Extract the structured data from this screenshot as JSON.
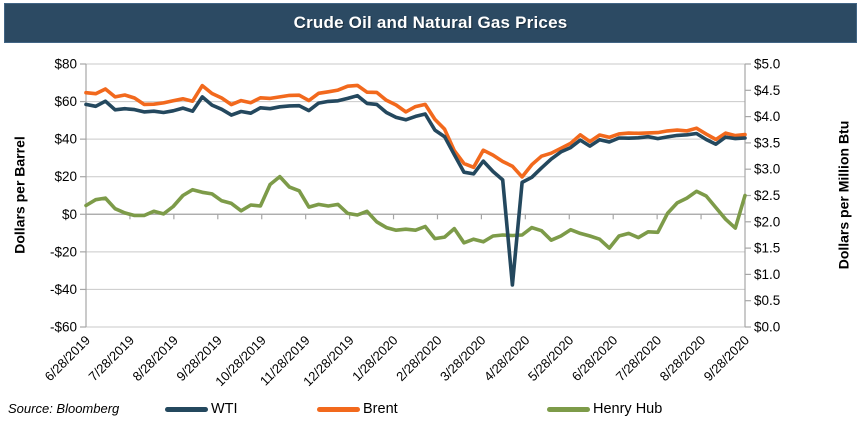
{
  "title": "Crude Oil and Natural Gas Prices",
  "source_note": "Source: Bloomberg",
  "colors": {
    "title_bar": "#2c4a63",
    "wti": "#24485e",
    "brent": "#f2691d",
    "henry_hub": "#7d9b49",
    "gridline": "#c9c9c9",
    "axis_line": "#a6a6a6"
  },
  "axes": {
    "left": {
      "title": "Dollars per Barrel",
      "ticks": [
        "$80",
        "$60",
        "$40",
        "$20",
        "$0",
        "-$20",
        "-$40",
        "-$60"
      ],
      "tick_values": [
        80,
        60,
        40,
        20,
        0,
        -20,
        -40,
        -60
      ]
    },
    "right": {
      "title": "Dollars per Million Btu",
      "ticks": [
        "$5.0",
        "$4.5",
        "$4.0",
        "$3.5",
        "$3.0",
        "$2.5",
        "$2.0",
        "$1.5",
        "$1.0",
        "$0.5",
        "$0.0"
      ],
      "tick_values": [
        5.0,
        4.5,
        4.0,
        3.5,
        3.0,
        2.5,
        2.0,
        1.5,
        1.0,
        0.5,
        0.0
      ]
    },
    "x": {
      "labels": [
        "6/28/2019",
        "7/28/2019",
        "8/28/2019",
        "9/28/2019",
        "10/28/2019",
        "11/28/2019",
        "12/28/2019",
        "1/28/2020",
        "2/28/2020",
        "3/28/2020",
        "4/28/2020",
        "5/28/2020",
        "6/28/2020",
        "7/28/2020",
        "8/28/2020",
        "9/28/2020"
      ]
    }
  },
  "legend": [
    {
      "label": "WTI",
      "color": "#24485e"
    },
    {
      "label": "Brent",
      "color": "#f2691d"
    },
    {
      "label": "Henry Hub",
      "color": "#7d9b49"
    }
  ],
  "chart_data": {
    "type": "line",
    "title": "Crude Oil and Natural Gas Prices",
    "left_ylabel": "Dollars per Barrel",
    "right_ylabel": "Dollars per Million Btu",
    "left_ylim": [
      -60,
      80
    ],
    "right_ylim": [
      0,
      5
    ],
    "grid": "horizontal",
    "legend_position": "bottom",
    "x": [
      "6/28/2019",
      "7/5/2019",
      "7/12/2019",
      "7/19/2019",
      "7/26/2019",
      "8/2/2019",
      "8/9/2019",
      "8/16/2019",
      "8/23/2019",
      "8/30/2019",
      "9/6/2019",
      "9/13/2019",
      "9/16/2019",
      "9/20/2019",
      "9/27/2019",
      "10/4/2019",
      "10/11/2019",
      "10/18/2019",
      "10/25/2019",
      "11/1/2019",
      "11/8/2019",
      "11/15/2019",
      "11/22/2019",
      "11/29/2019",
      "12/6/2019",
      "12/13/2019",
      "12/20/2019",
      "12/27/2019",
      "1/3/2020",
      "1/10/2020",
      "1/17/2020",
      "1/24/2020",
      "1/31/2020",
      "2/7/2020",
      "2/14/2020",
      "2/21/2020",
      "2/28/2020",
      "3/6/2020",
      "3/13/2020",
      "3/20/2020",
      "3/27/2020",
      "4/3/2020",
      "4/9/2020",
      "4/17/2020",
      "4/20/2020",
      "4/24/2020",
      "5/1/2020",
      "5/8/2020",
      "5/15/2020",
      "5/22/2020",
      "5/29/2020",
      "6/5/2020",
      "6/12/2020",
      "6/19/2020",
      "6/26/2020",
      "7/2/2020",
      "7/10/2020",
      "7/17/2020",
      "7/24/2020",
      "7/31/2020",
      "8/7/2020",
      "8/14/2020",
      "8/21/2020",
      "8/28/2020",
      "9/4/2020",
      "9/11/2020",
      "9/18/2020",
      "9/25/2020",
      "9/28/2020"
    ],
    "series": [
      {
        "name": "WTI",
        "axis": "left",
        "color": "#24485e",
        "values": [
          58.5,
          57.5,
          60.2,
          55.6,
          56.2,
          55.7,
          54.5,
          54.9,
          54.2,
          55.1,
          56.5,
          54.9,
          62.5,
          58.1,
          55.9,
          52.8,
          54.7,
          53.8,
          56.7,
          56.2,
          57.2,
          57.7,
          57.8,
          55.2,
          59.2,
          60.1,
          60.4,
          61.7,
          63.1,
          59.0,
          58.5,
          54.2,
          51.6,
          50.3,
          52.1,
          53.4,
          44.8,
          41.3,
          31.7,
          22.4,
          21.5,
          28.3,
          22.8,
          18.3,
          -37.6,
          17.0,
          19.7,
          24.7,
          29.4,
          33.2,
          35.5,
          39.5,
          36.3,
          39.7,
          38.5,
          40.6,
          40.5,
          40.7,
          41.3,
          40.3,
          41.2,
          42.0,
          42.3,
          43.0,
          39.8,
          37.3,
          41.1,
          40.3,
          40.6
        ]
      },
      {
        "name": "Brent",
        "axis": "left",
        "color": "#f2691d",
        "values": [
          64.7,
          64.2,
          66.7,
          62.5,
          63.5,
          61.9,
          58.5,
          58.6,
          59.3,
          60.4,
          61.5,
          60.2,
          68.5,
          64.3,
          61.9,
          58.4,
          60.5,
          59.4,
          62.0,
          61.7,
          62.5,
          63.3,
          63.4,
          60.5,
          64.4,
          65.2,
          66.1,
          68.2,
          68.6,
          65.0,
          64.9,
          60.7,
          58.2,
          54.5,
          57.3,
          58.5,
          50.5,
          45.3,
          33.9,
          27.0,
          25.0,
          34.1,
          31.5,
          28.1,
          25.6,
          19.9,
          26.4,
          30.9,
          32.5,
          35.1,
          37.8,
          42.3,
          38.7,
          42.2,
          41.0,
          42.8,
          43.2,
          43.1,
          43.3,
          43.5,
          44.4,
          44.8,
          44.4,
          45.8,
          42.7,
          39.8,
          43.2,
          41.9,
          42.4
        ]
      },
      {
        "name": "Henry Hub",
        "axis": "right",
        "color": "#7d9b49",
        "values": [
          2.31,
          2.42,
          2.45,
          2.25,
          2.17,
          2.12,
          2.12,
          2.2,
          2.15,
          2.29,
          2.5,
          2.61,
          2.56,
          2.53,
          2.4,
          2.35,
          2.21,
          2.32,
          2.3,
          2.71,
          2.86,
          2.66,
          2.59,
          2.28,
          2.33,
          2.3,
          2.33,
          2.16,
          2.13,
          2.2,
          2.0,
          1.89,
          1.84,
          1.86,
          1.84,
          1.91,
          1.68,
          1.71,
          1.87,
          1.6,
          1.67,
          1.62,
          1.73,
          1.75,
          1.74,
          1.75,
          1.89,
          1.83,
          1.65,
          1.73,
          1.85,
          1.78,
          1.73,
          1.67,
          1.5,
          1.73,
          1.78,
          1.7,
          1.81,
          1.8,
          2.16,
          2.36,
          2.45,
          2.58,
          2.49,
          2.27,
          2.05,
          1.88,
          2.5
        ]
      }
    ]
  }
}
